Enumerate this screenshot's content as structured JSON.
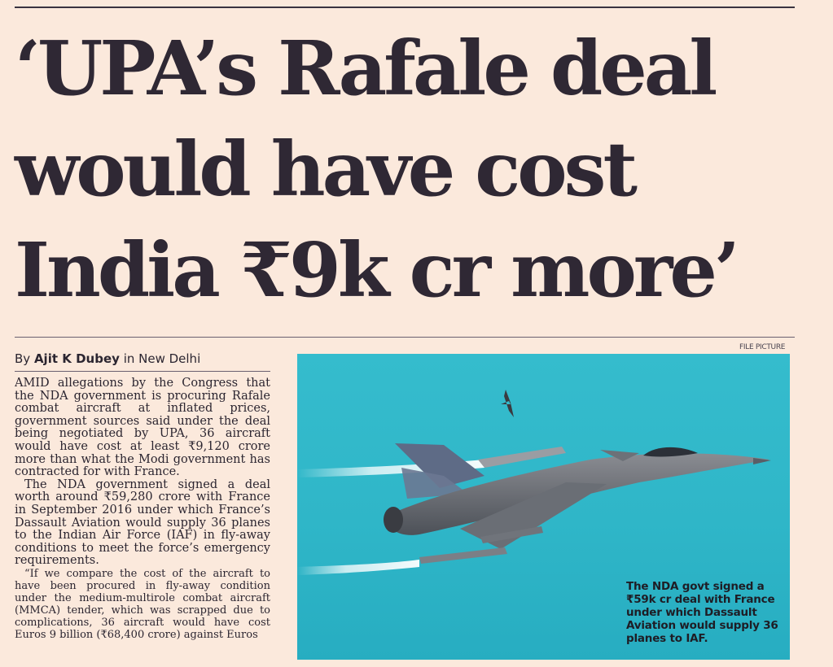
{
  "headline": {
    "line1": "‘UPA’s Rafale deal",
    "line2": "would have cost",
    "line3": "India ₹9k cr more’"
  },
  "byline": {
    "prefix": "By",
    "author": "Ajit K Dubey",
    "location": "in New Delhi"
  },
  "body": {
    "p1": "AMID allegations by the Congress that the NDA government is procuring Rafale combat aircraft at inflated prices, government sources said under the deal being negotiated by UPA, 36 aircraft would have cost at least ₹9,120 crore more than what the Modi government has contracted for with France.",
    "p2": "The NDA government signed a deal worth around ₹59,280 crore with France in September 2016 under which France’s Dassault Aviation would supply 36 planes to the Indian Air Force (IAF) in fly-away conditions to meet the force’s emergency requirements.",
    "p3": "“If we compare the cost of the aircraft to have been procured in fly-away condition under the medium-multirole combat aircraft (MMCA) tender, which was scrapped due to complications, 36 aircraft would have cost Euros 9 billion (₹68,400 crore) against Euros"
  },
  "photo": {
    "credit": "FILE PICTURE",
    "caption": "The NDA govt signed a ₹59k cr deal with France under which Dassault Aviation would supply 36 planes to IAF."
  },
  "colors": {
    "paper": "#fbe9dc",
    "ink": "#2f2834",
    "sky": "#33bacb"
  }
}
